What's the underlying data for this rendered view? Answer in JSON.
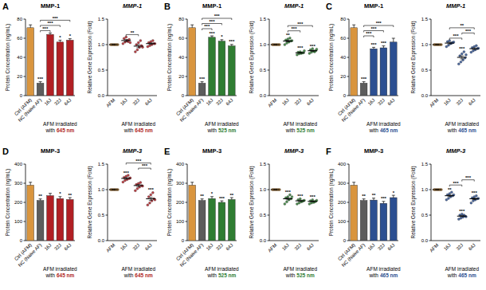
{
  "chart_data": [
    {
      "type": "bar",
      "panel": "A",
      "title": "MMP-1",
      "ylabel": "Protein Concentration (ng/mL)",
      "xlabel": [
        "AFM irradiated",
        "with"
      ],
      "xlabel_highlight": "645 nm",
      "categories": [
        "Ctrl (AFM)",
        "NC (Naive AF)",
        "16J",
        "32J",
        "64J"
      ],
      "values": [
        71,
        13,
        64,
        56,
        58
      ],
      "errors": [
        3,
        1.5,
        1.5,
        2,
        1.5
      ],
      "colors": [
        "#d9953e",
        "#5c5c5c",
        "#b11f24",
        "#b11f24",
        "#b11f24"
      ],
      "stars": [
        null,
        "***",
        null,
        "*",
        "*"
      ],
      "comparisons": [
        {
          "from": 1,
          "to": 2,
          "label": "***"
        },
        {
          "from": 1,
          "to": 3,
          "label": "***"
        },
        {
          "from": 1,
          "to": 4,
          "label": "***"
        }
      ],
      "ylim": [
        0,
        80
      ],
      "yticks": [
        0,
        20,
        40,
        60,
        80
      ],
      "grid": false
    },
    {
      "type": "dot",
      "title": "MMP-1",
      "ylabel": "Relative Gene Expression (Fold)",
      "xlabel": [
        "AFM irradiated",
        "with"
      ],
      "xlabel_highlight": "645 nm",
      "categories": [
        "AFM",
        "16J",
        "32J",
        "64J"
      ],
      "values": [
        1,
        1.08,
        0.97,
        1.02
      ],
      "errors": [
        0,
        0.02,
        0.03,
        0.015
      ],
      "points": [
        [
          1,
          1,
          1,
          1,
          1,
          1,
          1,
          1
        ],
        [
          1.02,
          1.05,
          1.08,
          1.1,
          1.12,
          1.15,
          1.06,
          1.04
        ],
        [
          0.86,
          0.9,
          0.95,
          0.98,
          1.0,
          1.04,
          1.08,
          0.95
        ],
        [
          0.96,
          0.98,
          1.0,
          1.02,
          1.04,
          1.06,
          1.08,
          1.02
        ]
      ],
      "colors": [
        "#d9953e",
        "#b11f24",
        "#b11f24",
        "#b11f24"
      ],
      "stars": [
        null,
        null,
        null,
        null
      ],
      "comparisons": [
        {
          "from": 1,
          "to": 2,
          "label": "**"
        }
      ],
      "ylim": [
        0,
        1.5
      ],
      "yticks": [
        {
          "value": 0,
          "label": "0.0"
        },
        {
          "value": 0.5,
          "label": "0.5"
        },
        {
          "value": 1,
          "label": "1.0"
        },
        {
          "value": 1.5,
          "label": "1.5"
        }
      ],
      "grid": false
    },
    {
      "type": "bar",
      "panel": "B",
      "title": "MMP-1",
      "ylabel": "Protein Concentration (ng/mL)",
      "xlabel": [
        "AFM irradiated",
        "with"
      ],
      "xlabel_highlight": "525 nm",
      "categories": [
        "Ctrl (AFM)",
        "NC (Naive AF)",
        "16J",
        "32J",
        "64J"
      ],
      "values": [
        71,
        13,
        61,
        57,
        52
      ],
      "errors": [
        3,
        1.5,
        1.5,
        1.5,
        1.5
      ],
      "colors": [
        "#d9953e",
        "#5c5c5c",
        "#2f7d32",
        "#2f7d32",
        "#2f7d32"
      ],
      "stars": [
        null,
        "***",
        "***",
        "*",
        "***"
      ],
      "comparisons": [
        {
          "from": 1,
          "to": 2,
          "label": "***"
        },
        {
          "from": 1,
          "to": 3,
          "label": "***"
        },
        {
          "from": 1,
          "to": 4,
          "label": "***"
        }
      ],
      "ylim": [
        0,
        80
      ],
      "yticks": [
        0,
        20,
        40,
        60,
        80
      ],
      "grid": false
    },
    {
      "type": "dot",
      "title": "MMP-1",
      "ylabel": "Relative Gene Expression (Fold)",
      "xlabel": [
        "AFM irradiated",
        "with"
      ],
      "xlabel_highlight": "525 nm",
      "categories": [
        "AFM",
        "16J",
        "32J",
        "64J"
      ],
      "values": [
        1,
        1.07,
        0.84,
        0.88
      ],
      "errors": [
        0,
        0.015,
        0.01,
        0.01
      ],
      "points": [
        [
          1,
          1,
          1,
          1,
          1,
          1,
          1,
          1
        ],
        [
          1.0,
          1.03,
          1.05,
          1.07,
          1.09,
          1.11,
          1.13,
          1.08
        ],
        [
          0.8,
          0.82,
          0.83,
          0.84,
          0.85,
          0.86,
          0.84,
          0.88
        ],
        [
          0.83,
          0.85,
          0.87,
          0.88,
          0.9,
          0.92,
          0.86,
          0.91
        ]
      ],
      "colors": [
        "#d9953e",
        "#2f7d32",
        "#2f7d32",
        "#2f7d32"
      ],
      "stars": [
        null,
        "**",
        "***",
        "***"
      ],
      "comparisons": [
        {
          "from": 1,
          "to": 2,
          "label": "***"
        },
        {
          "from": 1,
          "to": 3,
          "label": "***"
        }
      ],
      "ylim": [
        0,
        1.5
      ],
      "yticks": [
        {
          "value": 0,
          "label": "0.0"
        },
        {
          "value": 0.5,
          "label": "0.5"
        },
        {
          "value": 1,
          "label": "1.0"
        },
        {
          "value": 1.5,
          "label": "1.5"
        }
      ],
      "grid": false
    },
    {
      "type": "bar",
      "panel": "C",
      "title": "MMP-1",
      "ylabel": "Protein Concentration (ng/mL)",
      "xlabel": [
        "AFM irradiated",
        "with"
      ],
      "xlabel_highlight": "465 nm",
      "categories": [
        "Ctrl (AFM)",
        "NC (Naive AF)",
        "16J",
        "32J",
        "64J"
      ],
      "values": [
        71,
        13,
        49,
        50,
        56
      ],
      "errors": [
        3,
        1.5,
        1.5,
        2,
        4
      ],
      "colors": [
        "#d9953e",
        "#5c5c5c",
        "#2c4f91",
        "#2c4f91",
        "#2c4f91"
      ],
      "stars": [
        null,
        "***",
        "***",
        "***",
        null
      ],
      "comparisons": [
        {
          "from": 1,
          "to": 2,
          "label": "***"
        },
        {
          "from": 1,
          "to": 3,
          "label": "***"
        },
        {
          "from": 1,
          "to": 4,
          "label": "***"
        }
      ],
      "ylim": [
        0,
        80
      ],
      "yticks": [
        0,
        20,
        40,
        60,
        80
      ],
      "grid": false
    },
    {
      "type": "dot",
      "title": "MMP-1",
      "ylabel": "Relative Gene Expression (Fold)",
      "xlabel": [
        "AFM irradiated",
        "with"
      ],
      "xlabel_highlight": "465 nm",
      "categories": [
        "AFM",
        "16J",
        "32J",
        "64J"
      ],
      "values": [
        1,
        1.03,
        0.75,
        0.92
      ],
      "errors": [
        0,
        0.015,
        0.03,
        0.015
      ],
      "points": [
        [
          1,
          1,
          1,
          1,
          1,
          1,
          1,
          1
        ],
        [
          0.96,
          0.99,
          1.02,
          1.04,
          1.06,
          1.08,
          1.03,
          1.05
        ],
        [
          0.62,
          0.66,
          0.7,
          0.74,
          0.78,
          0.82,
          0.86,
          0.8
        ],
        [
          0.85,
          0.88,
          0.9,
          0.92,
          0.94,
          0.96,
          0.98,
          0.93
        ]
      ],
      "colors": [
        "#d9953e",
        "#2c4f91",
        "#2c4f91",
        "#2c4f91"
      ],
      "stars": [
        null,
        null,
        "***",
        null
      ],
      "comparisons": [
        {
          "from": 1,
          "to": 2,
          "label": "***"
        },
        {
          "from": 2,
          "to": 3,
          "label": "***"
        },
        {
          "from": 1,
          "to": 3,
          "label": "**"
        }
      ],
      "ylim": [
        0,
        1.5
      ],
      "yticks": [
        {
          "value": 0,
          "label": "0.0"
        },
        {
          "value": 0.5,
          "label": "0.5"
        },
        {
          "value": 1,
          "label": "1.0"
        },
        {
          "value": 1.5,
          "label": "1.5"
        }
      ],
      "grid": false
    },
    {
      "type": "bar",
      "panel": "D",
      "title": "MMP-3",
      "ylabel": "Protein Concentration (ng/mL)",
      "xlabel": [
        "AFM irradiated",
        "with"
      ],
      "xlabel_highlight": "645 nm",
      "categories": [
        "Ctrl (AFM)",
        "NC (Naive AF)",
        "16J",
        "32J",
        "64J"
      ],
      "values": [
        290,
        210,
        235,
        220,
        215
      ],
      "errors": [
        15,
        8,
        12,
        10,
        10
      ],
      "colors": [
        "#d9953e",
        "#5c5c5c",
        "#b11f24",
        "#b11f24",
        "#b11f24"
      ],
      "stars": [
        null,
        "**",
        null,
        "*",
        "**"
      ],
      "comparisons": [],
      "ylim": [
        0,
        400
      ],
      "yticks": [
        0,
        100,
        200,
        300,
        400
      ],
      "grid": false
    },
    {
      "type": "dot",
      "title": "MMP-3",
      "ylabel": "Relative Gene Expression (Fold)",
      "xlabel": [
        "AFM irradiated",
        "with"
      ],
      "xlabel_highlight": "645 nm",
      "categories": [
        "AFM",
        "16J",
        "32J",
        "64J"
      ],
      "values": [
        1,
        1.22,
        1.08,
        0.82
      ],
      "errors": [
        0,
        0.015,
        0.02,
        0.03
      ],
      "points": [
        [
          1,
          1,
          1,
          1,
          1,
          1,
          1,
          1
        ],
        [
          1.15,
          1.18,
          1.2,
          1.22,
          1.24,
          1.26,
          1.28,
          1.23
        ],
        [
          0.98,
          1.02,
          1.05,
          1.08,
          1.1,
          1.12,
          1.14,
          1.07
        ],
        [
          0.7,
          0.74,
          0.78,
          0.82,
          0.86,
          0.9,
          0.94,
          0.8
        ]
      ],
      "colors": [
        "#d9953e",
        "#b11f24",
        "#b11f24",
        "#b11f24"
      ],
      "stars": [
        null,
        "***",
        null,
        "***"
      ],
      "comparisons": [
        {
          "from": 2,
          "to": 3,
          "label": "***"
        },
        {
          "from": 1,
          "to": 3,
          "label": "***"
        }
      ],
      "ylim": [
        0,
        1.5
      ],
      "yticks": [
        {
          "value": 0,
          "label": "0.0"
        },
        {
          "value": 0.5,
          "label": "0.5"
        },
        {
          "value": 1,
          "label": "1.0"
        },
        {
          "value": 1.5,
          "label": "1.5"
        }
      ],
      "grid": false
    },
    {
      "type": "bar",
      "panel": "E",
      "title": "MMP-3",
      "ylabel": "Protein Concentration (ng/mL)",
      "xlabel": [
        "AFM irradiated",
        "with"
      ],
      "xlabel_highlight": "525 nm",
      "categories": [
        "Ctrl (AFM)",
        "NC (Naive AF)",
        "16J",
        "32J",
        "64J"
      ],
      "values": [
        290,
        210,
        220,
        200,
        215
      ],
      "errors": [
        15,
        8,
        10,
        8,
        10
      ],
      "colors": [
        "#d9953e",
        "#5c5c5c",
        "#2f7d32",
        "#2f7d32",
        "#2f7d32"
      ],
      "stars": [
        null,
        "**",
        "*",
        "***",
        "**"
      ],
      "comparisons": [],
      "ylim": [
        0,
        400
      ],
      "yticks": [
        0,
        100,
        200,
        300,
        400
      ],
      "grid": false
    },
    {
      "type": "dot",
      "title": "MMP-3",
      "ylabel": "Relative Gene Expression (Fold)",
      "xlabel": [
        "AFM irradiated",
        "with"
      ],
      "xlabel_highlight": "525 nm",
      "categories": [
        "AFM",
        "16J",
        "32J",
        "64J"
      ],
      "values": [
        1,
        0.82,
        0.78,
        0.77
      ],
      "errors": [
        0,
        0.02,
        0.012,
        0.01
      ],
      "points": [
        [
          1,
          1,
          1,
          1,
          1,
          1,
          1,
          1
        ],
        [
          0.72,
          0.76,
          0.8,
          0.82,
          0.84,
          0.86,
          0.9,
          0.86
        ],
        [
          0.72,
          0.74,
          0.76,
          0.78,
          0.8,
          0.82,
          0.77,
          0.79
        ],
        [
          0.72,
          0.74,
          0.75,
          0.77,
          0.78,
          0.8,
          0.76,
          0.79
        ]
      ],
      "colors": [
        "#d9953e",
        "#2f7d32",
        "#2f7d32",
        "#2f7d32"
      ],
      "stars": [
        null,
        "***",
        "***",
        "***"
      ],
      "comparisons": [],
      "ylim": [
        0,
        1.5
      ],
      "yticks": [
        {
          "value": 0,
          "label": "0.0"
        },
        {
          "value": 0.5,
          "label": "0.5"
        },
        {
          "value": 1,
          "label": "1.0"
        },
        {
          "value": 1.5,
          "label": "1.5"
        }
      ],
      "grid": false
    },
    {
      "type": "bar",
      "panel": "F",
      "title": "MMP-3",
      "ylabel": "Protein Concentration (ng/mL)",
      "xlabel": [
        "AFM irradiated",
        "with"
      ],
      "xlabel_highlight": "465 nm",
      "categories": [
        "Ctrl (AFM)",
        "NC (Naive AF)",
        "16J",
        "32J",
        "64J"
      ],
      "values": [
        290,
        210,
        212,
        195,
        225
      ],
      "errors": [
        15,
        8,
        10,
        10,
        12
      ],
      "colors": [
        "#d9953e",
        "#5c5c5c",
        "#2c4f91",
        "#2c4f91",
        "#2c4f91"
      ],
      "stars": [
        null,
        "**",
        "**",
        "***",
        "*"
      ],
      "comparisons": [],
      "ylim": [
        0,
        400
      ],
      "yticks": [
        0,
        100,
        200,
        300,
        400
      ],
      "grid": false
    },
    {
      "type": "dot",
      "title": "MMP-3",
      "ylabel": "Relative Gene Expression (Fold)",
      "xlabel": [
        "AFM irradiated",
        "with"
      ],
      "xlabel_highlight": "465 nm",
      "categories": [
        "AFM",
        "16J",
        "32J",
        "64J"
      ],
      "values": [
        1,
        0.88,
        0.48,
        0.82
      ],
      "errors": [
        0,
        0.015,
        0.01,
        0.015
      ],
      "points": [
        [
          1,
          1,
          1,
          1,
          1,
          1,
          1,
          1
        ],
        [
          0.8,
          0.83,
          0.86,
          0.88,
          0.9,
          0.92,
          0.95,
          0.9
        ],
        [
          0.42,
          0.44,
          0.46,
          0.48,
          0.5,
          0.52,
          0.5,
          0.47
        ],
        [
          0.74,
          0.78,
          0.8,
          0.82,
          0.84,
          0.86,
          0.88,
          0.83
        ]
      ],
      "colors": [
        "#d9953e",
        "#2c4f91",
        "#2c4f91",
        "#2c4f91"
      ],
      "stars": [
        null,
        "**",
        "***",
        "***"
      ],
      "comparisons": [
        {
          "from": 1,
          "to": 2,
          "label": "***"
        },
        {
          "from": 2,
          "to": 3,
          "label": "***"
        }
      ],
      "ylim": [
        0,
        1.5
      ],
      "yticks": [
        {
          "value": 0,
          "label": "0.0"
        },
        {
          "value": 0.5,
          "label": "0.5"
        },
        {
          "value": 1,
          "label": "1.0"
        },
        {
          "value": 1.5,
          "label": "1.5"
        }
      ],
      "grid": false
    }
  ]
}
